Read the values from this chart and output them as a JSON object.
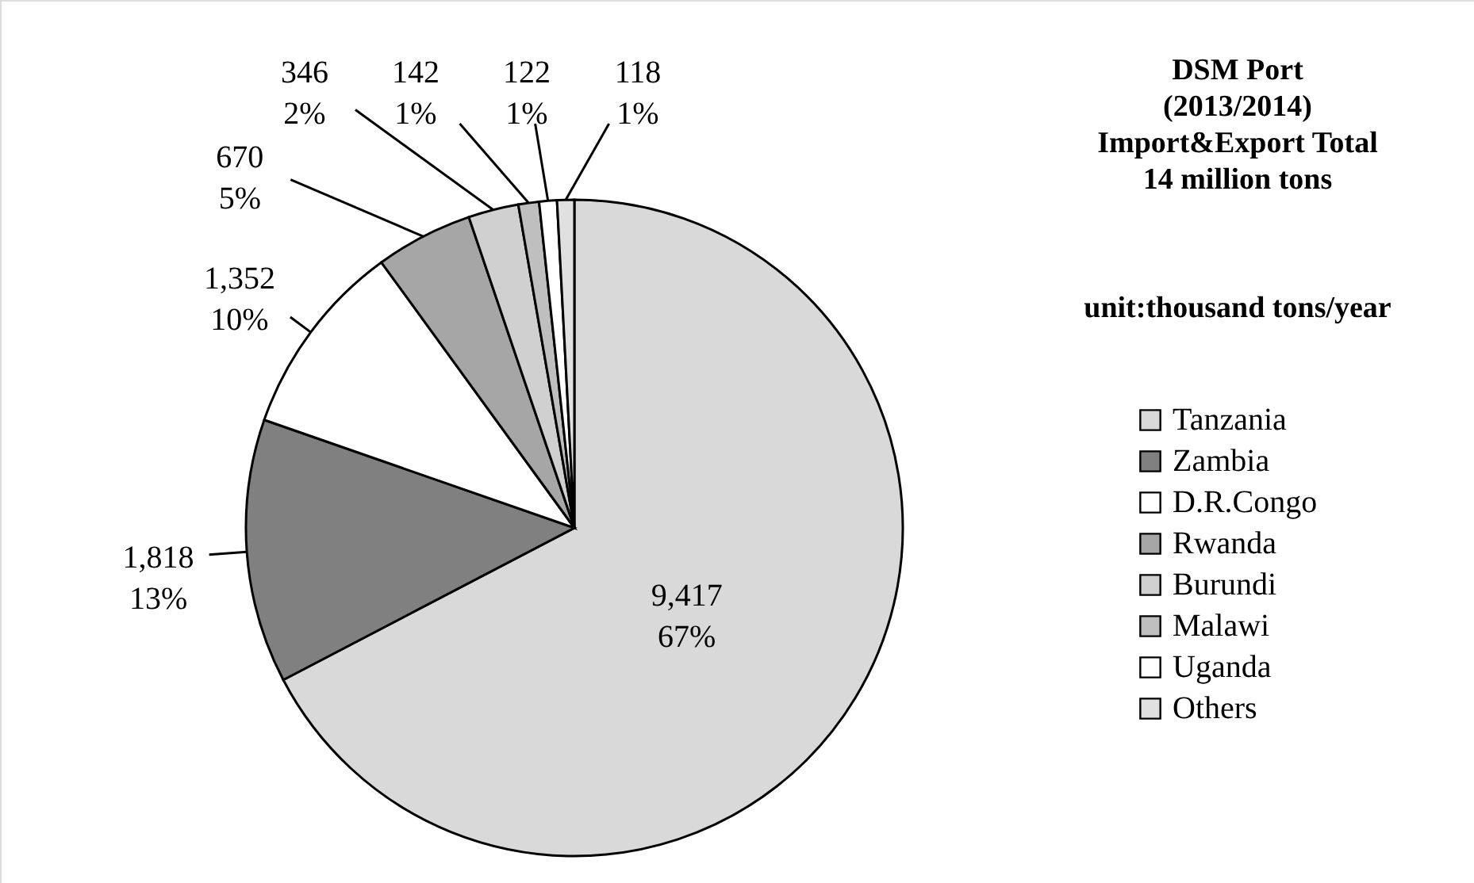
{
  "chart_data": {
    "type": "pie",
    "title": "DSM Port\n(2013/2014)\nImport&Export Total\n14 million tons",
    "subtitle": "unit:thousand tons/year",
    "categories": [
      "Tanzania",
      "Zambia",
      "D.R.Congo",
      "Rwanda",
      "Burundi",
      "Malawi",
      "Uganda",
      "Others"
    ],
    "values": [
      9417,
      1818,
      1352,
      670,
      346,
      142,
      122,
      118
    ],
    "value_labels": [
      "9,417\n67%",
      "1,818\n13%",
      "1,352\n10%",
      "670\n5%",
      "346\n2%",
      "142\n1%",
      "122\n1%",
      "118\n1%"
    ],
    "colors": [
      "#d9d9d9",
      "#808080",
      "#ffffff",
      "#a6a6a6",
      "#d0d0d0",
      "#bfbfbf",
      "#ffffff",
      "#e0e0e0"
    ],
    "legend": "right"
  }
}
